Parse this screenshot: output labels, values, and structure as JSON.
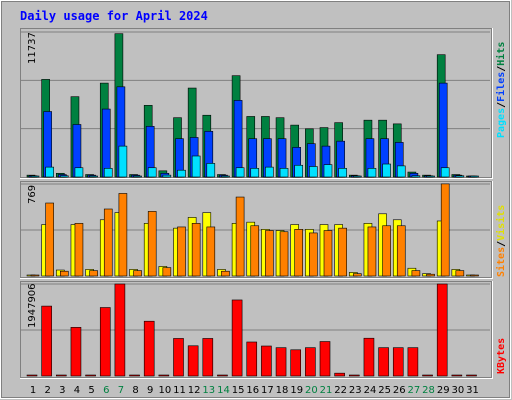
{
  "title": "Daily usage for April 2024",
  "colors": {
    "hits": "#008040",
    "files": "#0040ff",
    "pages": "#00e0ff",
    "visits": "#ffff00",
    "sites": "#ff8000",
    "kbytes": "#ff0000",
    "weekend": "#008040",
    "weekday": "#000000",
    "background": "#c0c0c0",
    "title": "#0000ff"
  },
  "labels": {
    "panel1_max": "11737",
    "panel2_max": "769",
    "panel3_max": "1947906",
    "right1": {
      "pages": "Pages",
      "s1": "/",
      "files": "Files",
      "s2": "/",
      "hits": "Hits"
    },
    "right2": {
      "sites": "Sites",
      "s1": "/",
      "visits": "Visits"
    },
    "right3": {
      "kbytes": "KBytes"
    }
  },
  "chart_data": {
    "type": "bar",
    "title": "Daily usage for April 2024",
    "days": [
      1,
      2,
      3,
      4,
      5,
      6,
      7,
      8,
      9,
      10,
      11,
      12,
      13,
      14,
      15,
      16,
      17,
      18,
      19,
      20,
      21,
      22,
      23,
      24,
      25,
      26,
      27,
      28,
      29,
      30,
      31
    ],
    "weekend_days": [
      6,
      7,
      13,
      14,
      20,
      21,
      27,
      28
    ],
    "panels": [
      {
        "name": "hits-files-pages",
        "ymax": 11737,
        "series": [
          {
            "name": "Hits",
            "values": [
              150,
              7900,
              300,
              6500,
              200,
              7600,
              11600,
              200,
              5800,
              500,
              4800,
              7200,
              5000,
              200,
              8200,
              4900,
              4900,
              4800,
              4200,
              3900,
              4000,
              4400,
              150,
              4600,
              4600,
              4300,
              400,
              150,
              9900,
              200,
              0
            ]
          },
          {
            "name": "Files",
            "values": [
              100,
              5300,
              200,
              4250,
              150,
              5500,
              7300,
              150,
              4100,
              300,
              3100,
              3200,
              3700,
              150,
              6200,
              3100,
              3100,
              3100,
              2400,
              2700,
              2500,
              2900,
              100,
              3100,
              3100,
              2800,
              300,
              100,
              7600,
              150,
              0
            ]
          },
          {
            "name": "Pages",
            "values": [
              50,
              800,
              100,
              750,
              80,
              700,
              2500,
              80,
              750,
              150,
              550,
              1700,
              1100,
              80,
              750,
              700,
              800,
              700,
              950,
              850,
              1000,
              700,
              50,
              700,
              1050,
              900,
              100,
              50,
              750,
              100,
              0
            ]
          }
        ]
      },
      {
        "name": "visits-sites",
        "ymax": 769,
        "series": [
          {
            "name": "Visits",
            "values": [
              5,
              430,
              50,
              430,
              55,
              470,
              530,
              55,
              440,
              80,
              400,
              490,
              530,
              55,
              440,
              450,
              390,
              380,
              430,
              390,
              430,
              430,
              30,
              440,
              520,
              470,
              65,
              20,
              460,
              55,
              0
            ]
          },
          {
            "name": "Sites",
            "values": [
              3,
              610,
              40,
              440,
              45,
              560,
              690,
              45,
              540,
              70,
              410,
              440,
              410,
              40,
              660,
              420,
              380,
              370,
              390,
              360,
              380,
              400,
              20,
              410,
              420,
              420,
              45,
              15,
              770,
              45,
              0
            ]
          }
        ]
      },
      {
        "name": "kbytes",
        "ymax": 1947906,
        "series": [
          {
            "name": "KBytes",
            "values": [
              5000,
              1480000,
              20000,
              1030000,
              20000,
              1450000,
              1947906,
              20000,
              1160000,
              15000,
              795000,
              640000,
              795000,
              15000,
              1610000,
              720000,
              635000,
              600000,
              555000,
              600000,
              730000,
              60000,
              10000,
              800000,
              600000,
              600000,
              600000,
              10000,
              1947906,
              15000,
              0
            ]
          }
        ]
      }
    ]
  }
}
